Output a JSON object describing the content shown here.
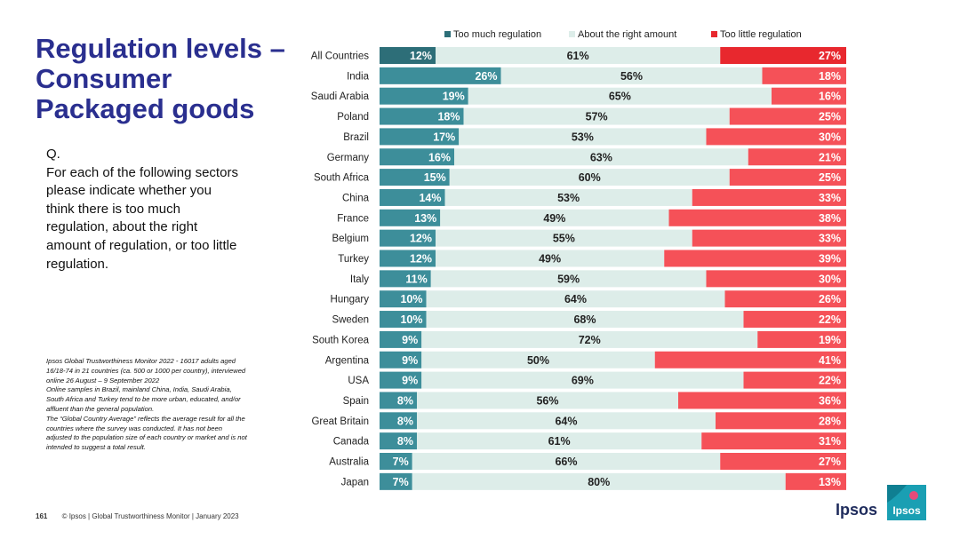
{
  "title_lines": [
    "Regulation levels –",
    "Consumer",
    "Packaged goods"
  ],
  "question_lines": [
    "Q.",
    "For each of the following sectors",
    "please indicate whether you",
    "think there is too much",
    "regulation, about the right",
    "amount of regulation, or too little",
    "regulation."
  ],
  "notes_lines": [
    "Ipsos Global Trustworthiness Monitor 2022 - 16017 adults aged",
    "16/18-74 in 21 countries (ca. 500 or 1000 per country), interviewed",
    "online 26 August – 9 September 2022",
    "Online samples in Brazil, mainland China, India, Saudi Arabia,",
    "South Africa and Turkey tend to be more urban, educated, and/or",
    "affluent than the general population.",
    "The “Global Country Average” reflects the average result for all the",
    "countries where the survey was conducted. It has not been",
    "adjusted to the population size of each country or market and is not",
    "intended to suggest a total result."
  ],
  "footer": {
    "page_number": "161",
    "text": "© Ipsos | Global Trustworthiness Monitor | January 2023"
  },
  "logo": {
    "wordmark": "Ipsos",
    "badge_text": "Ipsos"
  },
  "chart_data": {
    "type": "bar",
    "orientation": "horizontal-stacked-100",
    "categories": [
      "All Countries",
      "India",
      "Saudi Arabia",
      "Poland",
      "Brazil",
      "Germany",
      "South Africa",
      "China",
      "France",
      "Belgium",
      "Turkey",
      "Italy",
      "Hungary",
      "Sweden",
      "South Korea",
      "Argentina",
      "USA",
      "Spain",
      "Great Britain",
      "Canada",
      "Australia",
      "Japan"
    ],
    "series": [
      {
        "name": "Too much regulation",
        "color": "#3d8e9a",
        "highlight_color": "#2d6e78",
        "values": [
          12,
          26,
          19,
          18,
          17,
          16,
          15,
          14,
          13,
          12,
          12,
          11,
          10,
          10,
          9,
          9,
          9,
          8,
          8,
          8,
          7,
          7
        ]
      },
      {
        "name": "About the right amount",
        "color": "#ddede9",
        "highlight_color": "#ddede9",
        "values": [
          61,
          56,
          65,
          57,
          53,
          63,
          60,
          53,
          49,
          55,
          49,
          59,
          64,
          68,
          72,
          50,
          69,
          56,
          64,
          61,
          66,
          80
        ]
      },
      {
        "name": "Too little regulation",
        "color": "#f55158",
        "highlight_color": "#e8282e",
        "values": [
          27,
          18,
          16,
          25,
          30,
          21,
          25,
          33,
          38,
          33,
          39,
          30,
          26,
          22,
          19,
          41,
          22,
          36,
          28,
          31,
          27,
          13
        ]
      }
    ],
    "value_suffix": "%",
    "highlight_category": "All Countries",
    "xlim": [
      0,
      100
    ],
    "legend_position": "top"
  }
}
